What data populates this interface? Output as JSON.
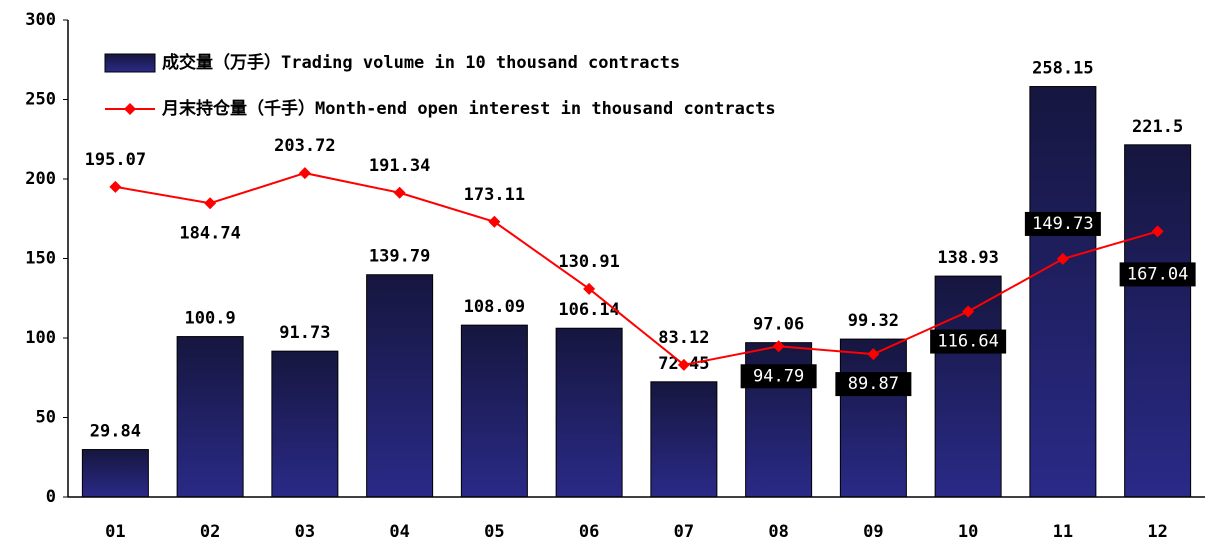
{
  "chart_data": {
    "type": "bar",
    "categories": [
      "01",
      "02",
      "03",
      "04",
      "05",
      "06",
      "07",
      "08",
      "09",
      "10",
      "11",
      "12"
    ],
    "series": [
      {
        "name": "成交量（万手）Trading volume in 10 thousand contracts",
        "type": "bar",
        "color": "#2a2a88",
        "values": [
          29.84,
          100.9,
          91.73,
          139.79,
          108.09,
          106.14,
          72.45,
          97.06,
          99.32,
          138.93,
          258.15,
          221.5
        ]
      },
      {
        "name": "月末持仓量（千手）Month-end open interest in thousand contracts",
        "type": "line",
        "color": "#ff0000",
        "values": [
          195.07,
          184.74,
          203.72,
          191.34,
          173.11,
          130.91,
          83.12,
          94.79,
          89.87,
          116.64,
          149.73,
          167.04
        ]
      }
    ],
    "ylim": [
      0,
      300
    ],
    "yticks": [
      0,
      50,
      100,
      150,
      200,
      250,
      300
    ],
    "legend": "upper left"
  }
}
